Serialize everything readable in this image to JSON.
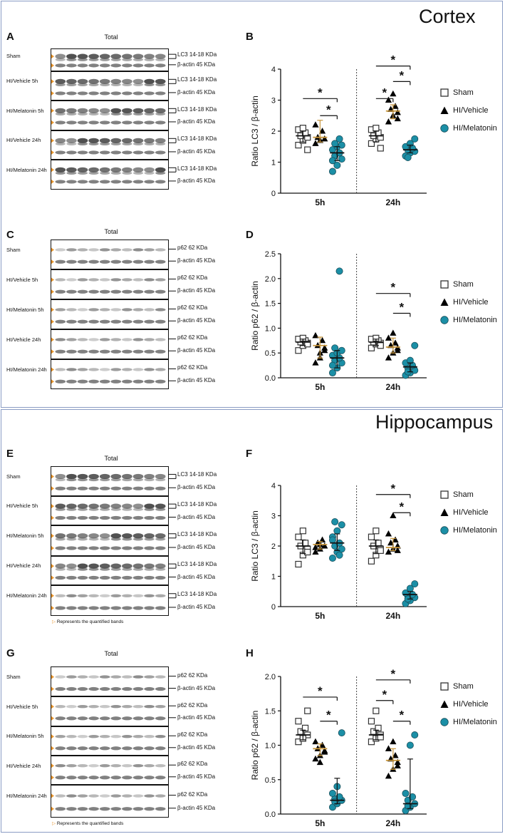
{
  "sections": [
    {
      "title": "Cortex"
    },
    {
      "title": "Hippocampus"
    }
  ],
  "legend": [
    {
      "label": "Sham",
      "marker": "square"
    },
    {
      "label": "HI/Vehicle",
      "marker": "triangle"
    },
    {
      "label": "HI/Melatonin",
      "marker": "circle"
    }
  ],
  "colors": {
    "sham": "#ffffff",
    "vehicle": "#000000",
    "melatonin": "#1b8fa6",
    "vehicle_median": "#c8963c",
    "border": "#8a9cc4"
  },
  "blots": [
    {
      "label": "A",
      "title": "Total",
      "rows": [
        "Sham",
        "HI/Vehicle 5h",
        "HI/Melatonin 5h",
        "HI/Vehicle 24h",
        "HI/Melatonin 24h"
      ],
      "bands": [
        "LC3 14-18 KDa",
        "β-actin 45 KDa"
      ],
      "footnote": ""
    },
    {
      "label": "C",
      "title": "Total",
      "rows": [
        "Sham",
        "HI/Vehicle 5h",
        "HI/Melatonin 5h",
        "HI/Vehicle 24h",
        "HI/Melatonin 24h"
      ],
      "bands": [
        "p62 62 KDa",
        "β-actin 45 KDa"
      ],
      "footnote": ""
    },
    {
      "label": "E",
      "title": "Total",
      "rows": [
        "Sham",
        "HI/Vehicle 5h",
        "HI/Melatonin 5h",
        "HI/Vehicle 24h",
        "HI/Melatonin 24h"
      ],
      "bands": [
        "LC3 14-18 KDa",
        "β-actin 45 KDa"
      ],
      "footnote": "Represents the quantified bands"
    },
    {
      "label": "G",
      "title": "Total",
      "rows": [
        "Sham",
        "HI/Vehicle 5h",
        "HI/Melatonin 5h",
        "HI/Vehicle 24h",
        "HI/Melatonin 24h"
      ],
      "bands": [
        "p62 62 KDa",
        "β-actin 45 KDa"
      ],
      "footnote": "Represents the quantified bands"
    }
  ],
  "chart_data": [
    {
      "label": "B",
      "type": "scatter",
      "ylabel": "Ratio LC3 / β-actin",
      "categories": [
        "5h",
        "24h"
      ],
      "ylim": [
        0,
        4
      ],
      "yticks": [
        "0",
        "1",
        "2",
        "3",
        "4"
      ],
      "ytick_values": [
        0,
        1,
        2,
        3,
        4
      ],
      "series": [
        {
          "name": "Sham",
          "values": [
            [
              1.55,
              1.7,
              1.8,
              1.85,
              1.95,
              2.05,
              2.1,
              1.4
            ],
            [
              1.6,
              1.75,
              1.8,
              1.85,
              1.95,
              2.05,
              2.1,
              1.45
            ]
          ],
          "median": [
            1.85,
            1.85
          ],
          "q": [
            [
              1.65,
              2.0
            ],
            [
              1.65,
              2.0
            ]
          ]
        },
        {
          "name": "HI/Vehicle",
          "values": [
            [
              1.6,
              1.7,
              1.75,
              1.8,
              2.0,
              2.2,
              1.7
            ],
            [
              2.3,
              2.5,
              2.6,
              2.7,
              2.8,
              3.0,
              3.2,
              2.4
            ]
          ],
          "median": [
            1.8,
            2.65
          ],
          "q": [
            [
              1.65,
              2.35
            ],
            [
              2.4,
              2.85
            ]
          ]
        },
        {
          "name": "HI/Melatonin",
          "values": [
            [
              0.7,
              0.9,
              1.1,
              1.2,
              1.3,
              1.4,
              1.5,
              1.55,
              1.6,
              1.75,
              1.05
            ],
            [
              1.2,
              1.3,
              1.35,
              1.4,
              1.45,
              1.5,
              1.6,
              1.75,
              1.15
            ]
          ],
          "median": [
            1.3,
            1.4
          ],
          "q": [
            [
              1.05,
              1.5
            ],
            [
              1.3,
              1.55
            ]
          ]
        }
      ],
      "sig": [
        {
          "group": 0,
          "from": 0,
          "to": 2,
          "y": 3.05
        },
        {
          "group": 0,
          "from": 1,
          "to": 2,
          "y": 2.5
        },
        {
          "group": 1,
          "from": 0,
          "to": 2,
          "y": 4.1
        },
        {
          "group": 1,
          "from": 1,
          "to": 2,
          "y": 3.6
        },
        {
          "group": 1,
          "from": 0,
          "to": 1,
          "y": 3.05
        }
      ],
      "sig_mark": "*"
    },
    {
      "label": "D",
      "type": "scatter",
      "ylabel": "Ratio p62 / β-actin",
      "categories": [
        "5h",
        "24h"
      ],
      "ylim": [
        0,
        2.5
      ],
      "yticks": [
        "0.0",
        "0.5",
        "1.0",
        "1.5",
        "2.0",
        "2.5"
      ],
      "ytick_values": [
        0,
        0.5,
        1.0,
        1.5,
        2.0,
        2.5
      ],
      "series": [
        {
          "name": "Sham",
          "values": [
            [
              0.55,
              0.65,
              0.7,
              0.72,
              0.75,
              0.78,
              0.8,
              0.68
            ],
            [
              0.6,
              0.68,
              0.7,
              0.72,
              0.75,
              0.78,
              0.8,
              0.65
            ]
          ],
          "median": [
            0.72,
            0.72
          ],
          "q": [
            [
              0.65,
              0.78
            ],
            [
              0.65,
              0.78
            ]
          ]
        },
        {
          "name": "HI/Vehicle",
          "values": [
            [
              0.3,
              0.4,
              0.55,
              0.65,
              0.75,
              0.85,
              0.5,
              0.6
            ],
            [
              0.4,
              0.5,
              0.6,
              0.65,
              0.7,
              0.8,
              0.9,
              0.55
            ]
          ],
          "median": [
            0.65,
            0.62
          ],
          "q": [
            [
              0.4,
              0.82
            ],
            [
              0.5,
              0.8
            ]
          ]
        },
        {
          "name": "HI/Melatonin",
          "values": [
            [
              0.1,
              0.2,
              0.3,
              0.35,
              0.4,
              0.45,
              0.5,
              0.55,
              0.6,
              2.15,
              0.25
            ],
            [
              0.05,
              0.1,
              0.15,
              0.2,
              0.25,
              0.3,
              0.35,
              0.65,
              0.12
            ]
          ],
          "median": [
            0.4,
            0.22
          ],
          "q": [
            [
              0.2,
              0.55
            ],
            [
              0.12,
              0.3
            ]
          ]
        }
      ],
      "sig": [
        {
          "group": 1,
          "from": 0,
          "to": 2,
          "y": 1.7
        },
        {
          "group": 1,
          "from": 1,
          "to": 2,
          "y": 1.3
        }
      ],
      "sig_mark": "*"
    },
    {
      "label": "F",
      "type": "scatter",
      "ylabel": "Ratio LC3 / β-actin",
      "categories": [
        "5h",
        "24h"
      ],
      "ylim": [
        0,
        4
      ],
      "yticks": [
        "0",
        "1",
        "2",
        "3",
        "4"
      ],
      "ytick_values": [
        0,
        1,
        2,
        3,
        4
      ],
      "series": [
        {
          "name": "Sham",
          "values": [
            [
              1.4,
              1.7,
              1.9,
              2.0,
              2.1,
              2.3,
              2.5,
              1.8
            ],
            [
              1.5,
              1.7,
              1.9,
              2.0,
              2.1,
              2.3,
              2.5,
              1.85
            ]
          ],
          "median": [
            2.0,
            2.0
          ],
          "q": [
            [
              1.75,
              2.2
            ],
            [
              1.75,
              2.2
            ]
          ]
        },
        {
          "name": "HI/Vehicle",
          "values": [
            [
              1.8,
              1.9,
              2.0,
              2.1,
              2.2,
              1.95,
              2.05
            ],
            [
              1.8,
              1.9,
              2.0,
              2.1,
              2.2,
              2.4,
              3.0,
              1.85
            ]
          ],
          "median": [
            2.05,
            1.95
          ],
          "q": [
            [
              1.9,
              2.15
            ],
            [
              1.85,
              2.25
            ]
          ]
        },
        {
          "name": "HI/Melatonin",
          "values": [
            [
              1.6,
              1.8,
              1.9,
              2.0,
              2.1,
              2.3,
              2.5,
              2.7,
              2.8,
              1.7,
              2.2
            ],
            [
              0.1,
              0.2,
              0.3,
              0.35,
              0.4,
              0.45,
              0.6,
              0.75,
              0.25
            ]
          ],
          "median": [
            2.1,
            0.4
          ],
          "q": [
            [
              1.85,
              2.4
            ],
            [
              0.25,
              0.5
            ]
          ]
        }
      ],
      "sig": [
        {
          "group": 1,
          "from": 0,
          "to": 2,
          "y": 3.7
        },
        {
          "group": 1,
          "from": 1,
          "to": 2,
          "y": 3.1
        }
      ],
      "sig_mark": "*"
    },
    {
      "label": "H",
      "type": "scatter",
      "ylabel": "Ratio p62 / β-actin",
      "categories": [
        "5h",
        "24h"
      ],
      "ylim": [
        0,
        2.0
      ],
      "yticks": [
        "0.0",
        "0.5",
        "1.0",
        "1.5",
        "2.0"
      ],
      "ytick_values": [
        0,
        0.5,
        1.0,
        1.5,
        2.0
      ],
      "series": [
        {
          "name": "Sham",
          "values": [
            [
              1.05,
              1.1,
              1.15,
              1.2,
              1.25,
              1.35,
              1.1,
              1.5
            ],
            [
              1.05,
              1.1,
              1.15,
              1.2,
              1.25,
              1.35,
              1.5,
              1.12
            ]
          ],
          "median": [
            1.15,
            1.15
          ],
          "q": [
            [
              1.08,
              1.22
            ],
            [
              1.08,
              1.22
            ]
          ]
        },
        {
          "name": "HI/Vehicle",
          "values": [
            [
              0.8,
              0.85,
              0.9,
              0.95,
              1.0,
              1.05,
              0.75,
              0.92
            ],
            [
              0.55,
              0.65,
              0.75,
              0.8,
              0.85,
              0.95,
              1.05,
              0.7
            ]
          ],
          "median": [
            0.95,
            0.78
          ],
          "q": [
            [
              0.85,
              1.02
            ],
            [
              0.65,
              0.95
            ]
          ]
        },
        {
          "name": "HI/Melatonin",
          "values": [
            [
              0.1,
              0.15,
              0.2,
              0.22,
              0.25,
              0.3,
              0.4,
              1.18,
              0.18
            ],
            [
              0.05,
              0.1,
              0.15,
              0.2,
              0.25,
              0.3,
              1.0,
              1.15,
              0.12
            ]
          ],
          "median": [
            0.2,
            0.15
          ],
          "q": [
            [
              0.15,
              0.52
            ],
            [
              0.08,
              0.8
            ]
          ]
        }
      ],
      "sig": [
        {
          "group": 0,
          "from": 0,
          "to": 2,
          "y": 1.7
        },
        {
          "group": 0,
          "from": 1,
          "to": 2,
          "y": 1.35
        },
        {
          "group": 1,
          "from": 0,
          "to": 2,
          "y": 1.95
        },
        {
          "group": 1,
          "from": 1,
          "to": 2,
          "y": 1.35
        },
        {
          "group": 1,
          "from": 0,
          "to": 1,
          "y": 1.65
        }
      ],
      "sig_mark": "*"
    }
  ]
}
